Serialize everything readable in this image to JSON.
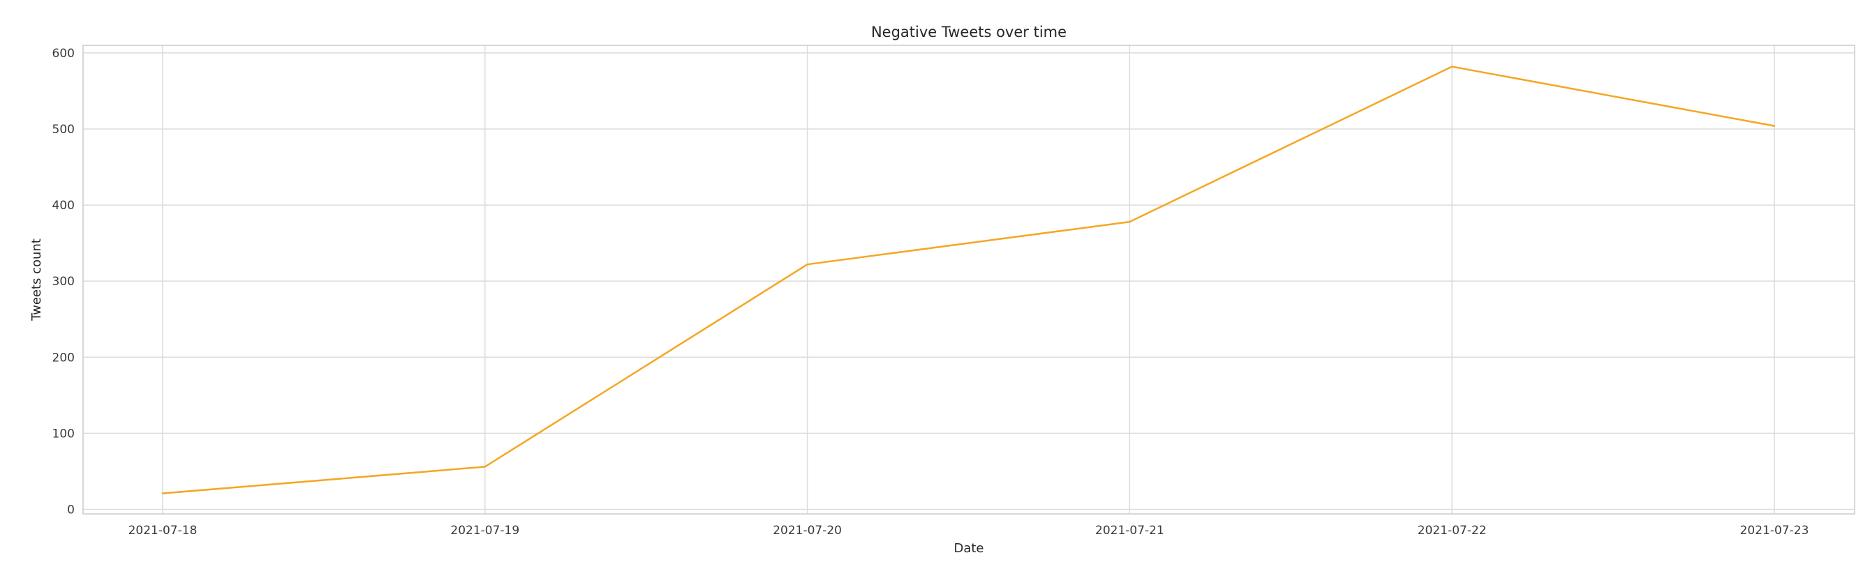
{
  "chart_data": {
    "type": "line",
    "title": "Negative Tweets over time",
    "xlabel": "Date",
    "ylabel": "Tweets count",
    "x": [
      "2021-07-18",
      "2021-07-19",
      "2021-07-20",
      "2021-07-21",
      "2021-07-22",
      "2021-07-23"
    ],
    "yticks": [
      0,
      100,
      200,
      300,
      400,
      500,
      600
    ],
    "ylim": [
      -6,
      610
    ],
    "grid": true,
    "series": [
      {
        "values": [
          21,
          56,
          322,
          378,
          582,
          504
        ],
        "color": "#f5a623"
      }
    ],
    "colors": {
      "line": "#f5a623",
      "grid": "#dcdcdc",
      "spine": "#cccccc",
      "background": "#ffffff"
    }
  }
}
